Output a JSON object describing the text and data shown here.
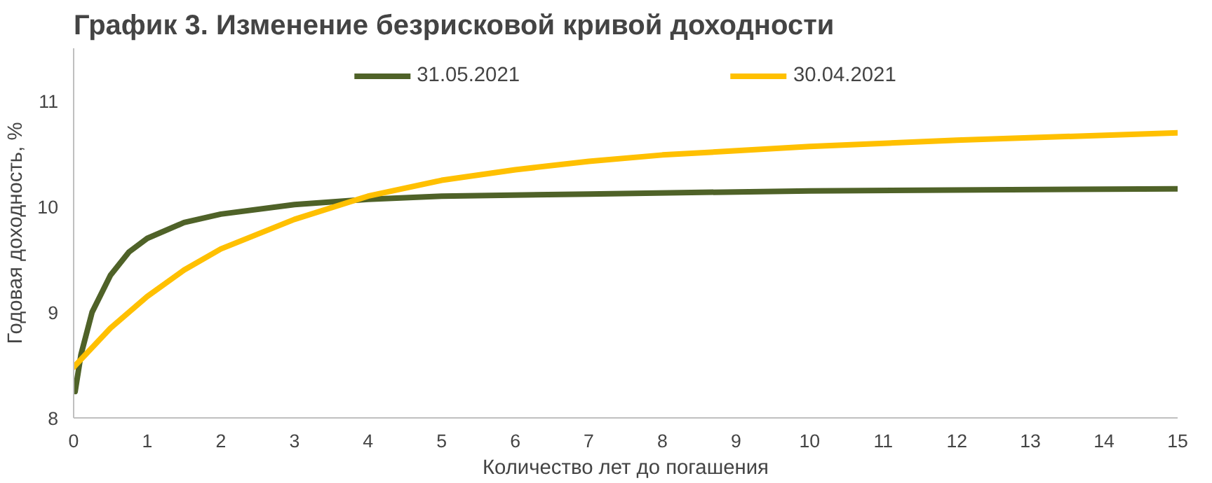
{
  "chart_data": {
    "type": "line",
    "title": "График 3. Изменение безрисковой кривой доходности",
    "xlabel": "Количество лет до погашения",
    "ylabel": "Годовая доходность, %",
    "xlim": [
      0,
      15
    ],
    "xticks": [
      0,
      1,
      2,
      3,
      4,
      5,
      6,
      7,
      8,
      9,
      10,
      11,
      12,
      13,
      14,
      15
    ],
    "ylim": [
      8,
      11.5
    ],
    "yticks": [
      8,
      9,
      10,
      11
    ],
    "grid": false,
    "legend": "top",
    "marker": "none",
    "line_style": "solid",
    "series": [
      {
        "name": "31.05.2021",
        "color": "#4f6228",
        "x": [
          0.02,
          0.1,
          0.25,
          0.5,
          0.75,
          1,
          1.5,
          2,
          3,
          4,
          5,
          7,
          10,
          15
        ],
        "values": [
          8.25,
          8.6,
          9.0,
          9.35,
          9.57,
          9.7,
          9.85,
          9.93,
          10.02,
          10.07,
          10.1,
          10.12,
          10.15,
          10.17
        ]
      },
      {
        "name": "30.04.2021",
        "color": "#ffc000",
        "x": [
          0,
          0.5,
          1,
          1.5,
          2,
          3,
          4,
          5,
          6,
          7,
          8,
          10,
          12,
          15
        ],
        "values": [
          8.48,
          8.85,
          9.15,
          9.4,
          9.6,
          9.88,
          10.1,
          10.25,
          10.35,
          10.43,
          10.49,
          10.57,
          10.63,
          10.7
        ]
      }
    ]
  }
}
